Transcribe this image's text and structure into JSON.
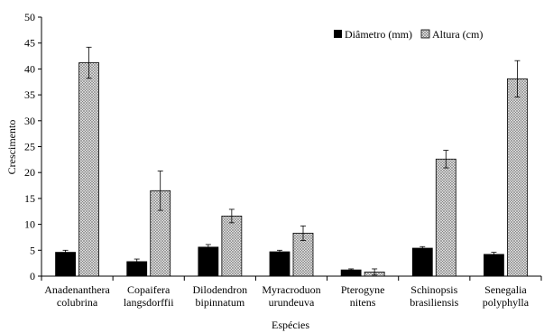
{
  "chart_data": {
    "type": "bar",
    "xlabel": "Espécies",
    "ylabel": "Crescimento",
    "ylim": [
      0,
      50
    ],
    "yticks": [
      0,
      5,
      10,
      15,
      20,
      25,
      30,
      35,
      40,
      45,
      50
    ],
    "grid": false,
    "legend_position": "top-right",
    "categories": [
      [
        "Anadenanthera",
        "colubrina"
      ],
      [
        "Copaifera",
        "langsdorffii"
      ],
      [
        "Dilodendron",
        "bipinnatum"
      ],
      [
        "Myracroduon",
        "urundeuva"
      ],
      [
        "Pterogyne",
        "nitens"
      ],
      [
        "Schinopsis",
        "brasiliensis"
      ],
      [
        "Senegalia",
        "polyphylla"
      ]
    ],
    "series": [
      {
        "name": "Diâmetro (mm)",
        "color": "#000000",
        "pattern": "solid",
        "values": [
          4.6,
          2.8,
          5.6,
          4.7,
          1.2,
          5.4,
          4.2
        ],
        "errors": [
          0.4,
          0.5,
          0.5,
          0.3,
          0.2,
          0.3,
          0.4
        ]
      },
      {
        "name": "Altura (cm)",
        "color": "#9a9a9a",
        "pattern": "crosshatch",
        "values": [
          41.2,
          16.5,
          11.6,
          8.3,
          0.8,
          22.6,
          38.1
        ],
        "errors": [
          3.0,
          3.8,
          1.3,
          1.4,
          0.6,
          1.7,
          3.5
        ]
      }
    ]
  }
}
